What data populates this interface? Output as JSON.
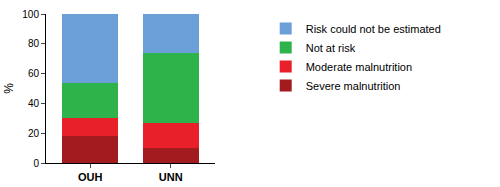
{
  "chart_data": {
    "type": "bar",
    "stacked": true,
    "y_label": "%",
    "categories": [
      "OUH",
      "UNN"
    ],
    "series": [
      {
        "name": "Severe malnutrition",
        "color": "#a11b1f",
        "values": [
          18,
          10
        ]
      },
      {
        "name": "Moderate malnutrition",
        "color": "#e8202a",
        "values": [
          12,
          17
        ]
      },
      {
        "name": "Not at risk",
        "color": "#2db34a",
        "values": [
          24,
          47
        ]
      },
      {
        "name": "Risk could not be estimated",
        "color": "#6b9fd8",
        "values": [
          46,
          26
        ]
      }
    ],
    "ylim": [
      0,
      100
    ],
    "yticks": [
      0,
      20,
      40,
      60,
      80,
      100
    ],
    "grid": false,
    "legend": "right"
  }
}
